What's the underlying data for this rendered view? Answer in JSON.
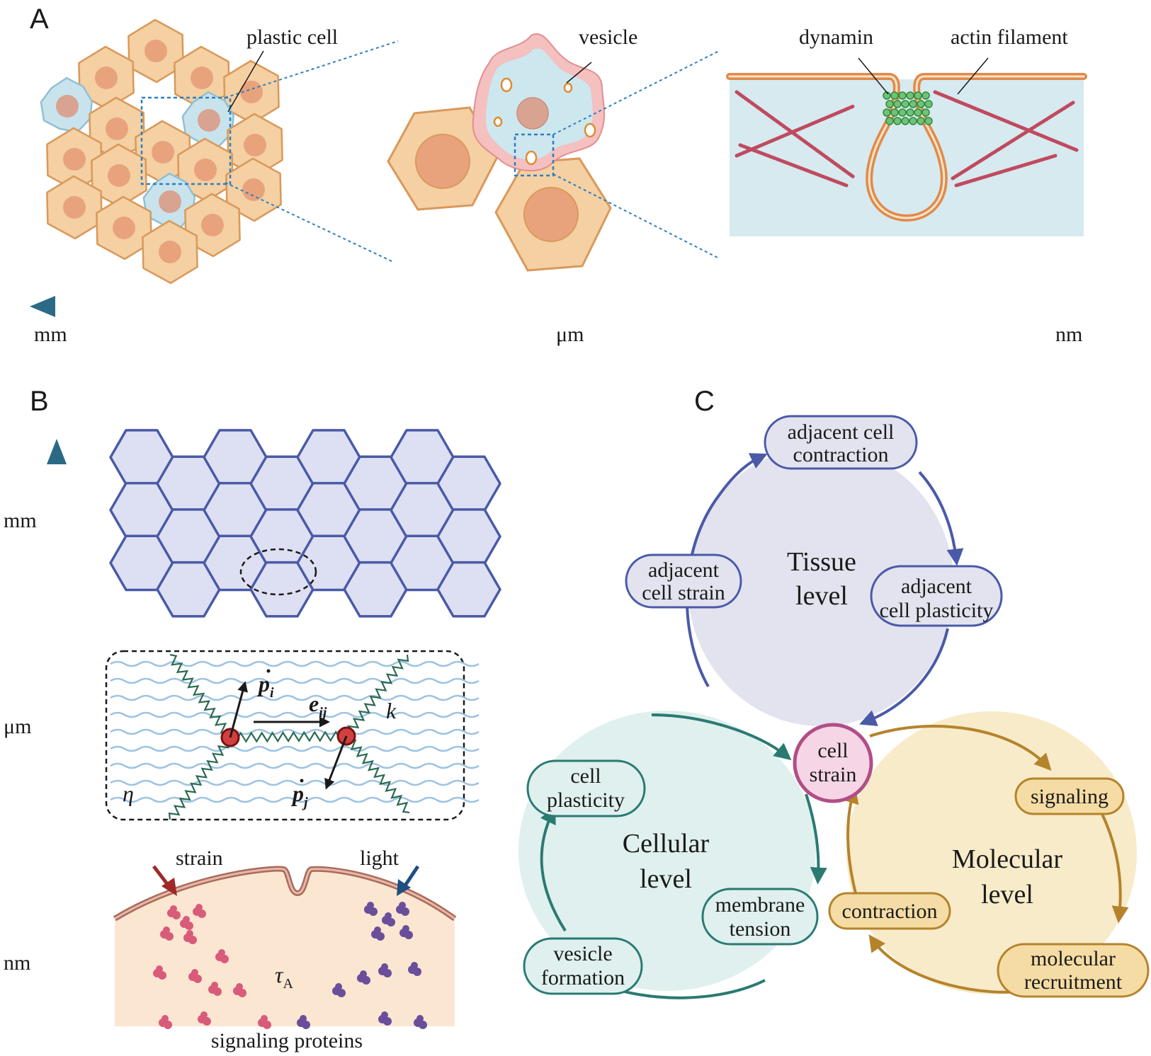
{
  "panels": {
    "a": "A",
    "b": "B",
    "c": "C"
  },
  "panel_a": {
    "plastic_cell": "plastic cell",
    "vesicle": "vesicle",
    "dynamin": "dynamin",
    "actin_filament": "actin filament",
    "scale": {
      "mm": "mm",
      "um": "μm",
      "nm": "nm"
    }
  },
  "panel_b": {
    "scale": {
      "mm": "mm",
      "um": "μm",
      "nm": "nm"
    },
    "p_i": "p",
    "p_i_sub": "i",
    "e_ij": "e",
    "e_ij_sub": "ij",
    "k": "k",
    "p_j": "p",
    "p_j_sub": "j",
    "eta": "η",
    "strain": "strain",
    "light": "light",
    "tau": "τ",
    "tau_sub": "A",
    "signaling_proteins": "signaling proteins"
  },
  "panel_c": {
    "tissue": {
      "line1": "Tissue",
      "line2": "level",
      "contraction": [
        "adjacent cell",
        "contraction"
      ],
      "strain": [
        "adjacent",
        "cell strain"
      ],
      "plasticity": [
        "adjacent",
        "cell plasticity"
      ]
    },
    "cell_strain": [
      "cell",
      "strain"
    ],
    "cellular": {
      "line1": "Cellular",
      "line2": "level",
      "plasticity": [
        "cell",
        "plasticity"
      ],
      "tension": [
        "membrane",
        "tension"
      ],
      "vesicle": [
        "vesicle",
        "formation"
      ]
    },
    "molecular": {
      "line1": "Molecular",
      "line2": "level",
      "signaling": "signaling",
      "contraction": "contraction",
      "recruitment": [
        "molecular",
        "recruitment"
      ]
    }
  },
  "colors": {
    "cell_fill": "#f4d0a3",
    "cell_stroke": "#d9995a",
    "nucleus": "#e9a37c",
    "plastic_fill": "#c9e3ec",
    "tissue_fill": "#e3e3ef",
    "tissue_stroke": "#4a5aa8",
    "cellular_fill": "#dff0ee",
    "cellular_stroke": "#2a7a72",
    "molecular_fill": "#f8ebc9",
    "molecular_stroke": "#b5832c",
    "cell_strain_fill": "#f6d6e6",
    "cell_strain_stroke": "#b14e86",
    "scale_arrow": "#2b6a86"
  }
}
